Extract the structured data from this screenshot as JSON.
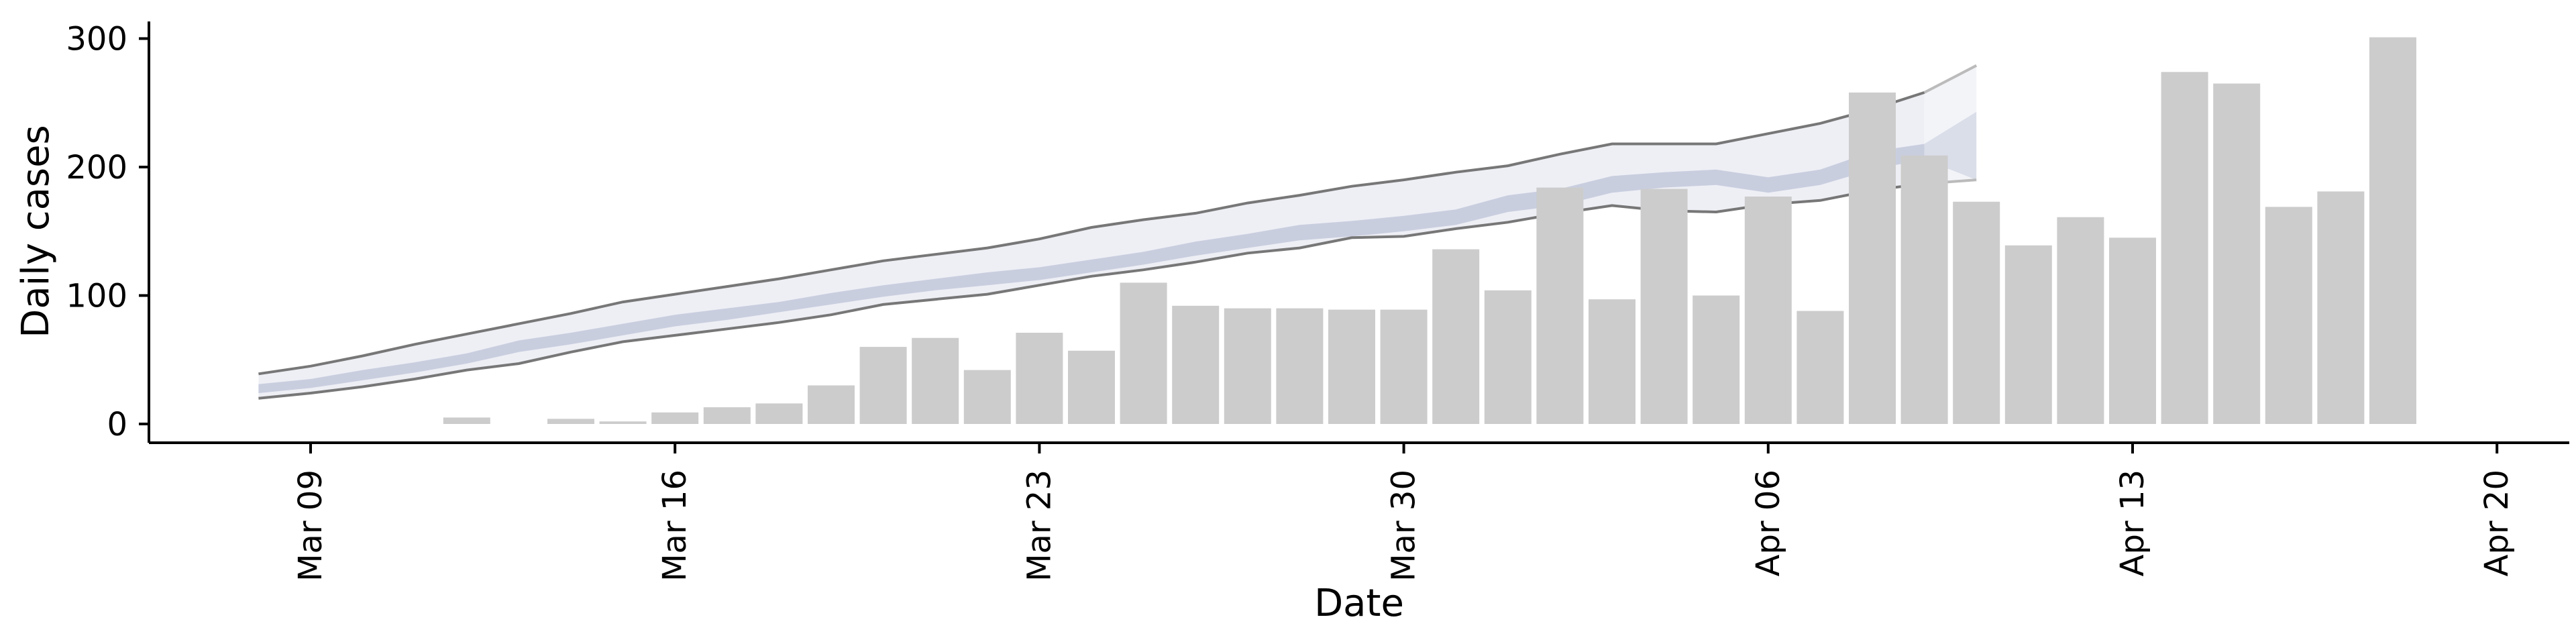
{
  "chart_data": {
    "type": "bar",
    "title": "",
    "xlabel": "Date",
    "ylabel": "Daily cases",
    "ylim": [
      0,
      315
    ],
    "yticks": [
      0,
      100,
      200,
      300
    ],
    "xticks": [
      {
        "date": "2020-03-09",
        "label": "Mar 09"
      },
      {
        "date": "2020-03-16",
        "label": "Mar 16"
      },
      {
        "date": "2020-03-23",
        "label": "Mar 23"
      },
      {
        "date": "2020-03-30",
        "label": "Mar 30"
      },
      {
        "date": "2020-04-06",
        "label": "Apr 06"
      },
      {
        "date": "2020-04-13",
        "label": "Apr 13"
      },
      {
        "date": "2020-04-20",
        "label": "Apr 20"
      }
    ],
    "grid": false,
    "colors": {
      "bar": "#cccccc",
      "band_outer": "#eeeff5",
      "band_inner": "#c9cedf",
      "band_edge": "#777777",
      "axis": "#000000"
    },
    "bars": [
      {
        "date": "2020-03-12",
        "value": 5
      },
      {
        "date": "2020-03-14",
        "value": 4
      },
      {
        "date": "2020-03-15",
        "value": 2
      },
      {
        "date": "2020-03-16",
        "value": 9
      },
      {
        "date": "2020-03-17",
        "value": 13
      },
      {
        "date": "2020-03-18",
        "value": 16
      },
      {
        "date": "2020-03-19",
        "value": 30
      },
      {
        "date": "2020-03-20",
        "value": 60
      },
      {
        "date": "2020-03-21",
        "value": 67
      },
      {
        "date": "2020-03-22",
        "value": 42
      },
      {
        "date": "2020-03-23",
        "value": 71
      },
      {
        "date": "2020-03-24",
        "value": 57
      },
      {
        "date": "2020-03-25",
        "value": 110
      },
      {
        "date": "2020-03-26",
        "value": 92
      },
      {
        "date": "2020-03-27",
        "value": 90
      },
      {
        "date": "2020-03-28",
        "value": 90
      },
      {
        "date": "2020-03-29",
        "value": 89
      },
      {
        "date": "2020-03-30",
        "value": 89
      },
      {
        "date": "2020-03-31",
        "value": 136
      },
      {
        "date": "2020-04-01",
        "value": 104
      },
      {
        "date": "2020-04-02",
        "value": 184
      },
      {
        "date": "2020-04-03",
        "value": 97
      },
      {
        "date": "2020-04-04",
        "value": 183
      },
      {
        "date": "2020-04-05",
        "value": 100
      },
      {
        "date": "2020-04-06",
        "value": 177
      },
      {
        "date": "2020-04-07",
        "value": 88
      },
      {
        "date": "2020-04-08",
        "value": 258
      },
      {
        "date": "2020-04-09",
        "value": 209
      },
      {
        "date": "2020-04-10",
        "value": 173
      },
      {
        "date": "2020-04-11",
        "value": 139
      },
      {
        "date": "2020-04-12",
        "value": 161
      },
      {
        "date": "2020-04-13",
        "value": 145
      },
      {
        "date": "2020-04-14",
        "value": 274
      },
      {
        "date": "2020-04-15",
        "value": 265
      },
      {
        "date": "2020-04-16",
        "value": 169
      },
      {
        "date": "2020-04-17",
        "value": 181
      },
      {
        "date": "2020-04-18",
        "value": 301
      }
    ],
    "band": {
      "dates": [
        "2020-03-08",
        "2020-03-09",
        "2020-03-10",
        "2020-03-11",
        "2020-03-12",
        "2020-03-13",
        "2020-03-14",
        "2020-03-15",
        "2020-03-16",
        "2020-03-17",
        "2020-03-18",
        "2020-03-19",
        "2020-03-20",
        "2020-03-21",
        "2020-03-22",
        "2020-03-23",
        "2020-03-24",
        "2020-03-25",
        "2020-03-26",
        "2020-03-27",
        "2020-03-28",
        "2020-03-29",
        "2020-03-30",
        "2020-03-31",
        "2020-04-01",
        "2020-04-02",
        "2020-04-03",
        "2020-04-04",
        "2020-04-05",
        "2020-04-06",
        "2020-04-07",
        "2020-04-08",
        "2020-04-09"
      ],
      "outer_upper": [
        39,
        45,
        53,
        62,
        70,
        78,
        86,
        95,
        101,
        107,
        113,
        120,
        127,
        132,
        137,
        144,
        153,
        159,
        164,
        172,
        178,
        185,
        190,
        196,
        201,
        210,
        218,
        218,
        218,
        226,
        234,
        245,
        258
      ],
      "outer_lower": [
        20,
        24,
        29,
        35,
        42,
        47,
        56,
        64,
        69,
        74,
        79,
        85,
        93,
        97,
        101,
        108,
        115,
        120,
        126,
        133,
        137,
        145,
        146,
        152,
        157,
        164,
        170,
        166,
        165,
        171,
        174,
        182,
        187
      ],
      "inner_upper": [
        31,
        35,
        42,
        48,
        55,
        65,
        71,
        78,
        85,
        90,
        95,
        102,
        108,
        113,
        118,
        122,
        128,
        134,
        142,
        148,
        155,
        158,
        162,
        167,
        178,
        183,
        193,
        196,
        198,
        192,
        198,
        212,
        218
      ],
      "inner_lower": [
        24,
        28,
        34,
        40,
        47,
        56,
        62,
        69,
        76,
        81,
        87,
        93,
        99,
        104,
        108,
        112,
        118,
        124,
        131,
        137,
        143,
        146,
        150,
        155,
        165,
        170,
        180,
        184,
        186,
        180,
        186,
        198,
        206
      ],
      "ext_dates": [
        "2020-04-09",
        "2020-04-10"
      ],
      "ext_outer_upper": [
        258,
        279
      ],
      "ext_outer_lower": [
        187,
        190
      ],
      "ext_inner_upper": [
        218,
        243
      ],
      "ext_inner_lower": [
        206,
        190
      ]
    }
  }
}
